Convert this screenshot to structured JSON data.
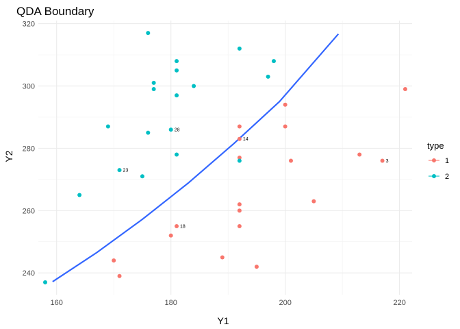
{
  "chart_data": {
    "type": "scatter",
    "title": "QDA Boundary",
    "xlabel": "Y1",
    "ylabel": "Y2",
    "xlim": [
      156.8,
      222.2
    ],
    "ylim": [
      233.0,
      321.0
    ],
    "x_ticks": [
      160,
      180,
      200,
      220
    ],
    "y_ticks": [
      240,
      260,
      280,
      300,
      320
    ],
    "grid": true,
    "legend": {
      "title": "type",
      "position": "right",
      "entries": [
        {
          "label": "1",
          "color": "#F8766D"
        },
        {
          "label": "2",
          "color": "#00BFC4"
        }
      ]
    },
    "series": [
      {
        "name": "1",
        "color": "#F8766D",
        "points": [
          {
            "x": 221,
            "y": 299
          },
          {
            "x": 200,
            "y": 294
          },
          {
            "x": 192,
            "y": 287
          },
          {
            "x": 200,
            "y": 287
          },
          {
            "x": 192,
            "y": 283,
            "label": "14"
          },
          {
            "x": 213,
            "y": 278
          },
          {
            "x": 192,
            "y": 277
          },
          {
            "x": 201,
            "y": 276
          },
          {
            "x": 217,
            "y": 276,
            "label": "3"
          },
          {
            "x": 205,
            "y": 263
          },
          {
            "x": 192,
            "y": 262
          },
          {
            "x": 192,
            "y": 260
          },
          {
            "x": 181,
            "y": 255,
            "label": "18"
          },
          {
            "x": 192,
            "y": 255
          },
          {
            "x": 180,
            "y": 252
          },
          {
            "x": 189,
            "y": 245
          },
          {
            "x": 170,
            "y": 244
          },
          {
            "x": 195,
            "y": 242
          },
          {
            "x": 171,
            "y": 239
          }
        ]
      },
      {
        "name": "2",
        "color": "#00BFC4",
        "points": [
          {
            "x": 176,
            "y": 317
          },
          {
            "x": 192,
            "y": 312
          },
          {
            "x": 181,
            "y": 308
          },
          {
            "x": 198,
            "y": 308
          },
          {
            "x": 181,
            "y": 305
          },
          {
            "x": 197,
            "y": 303
          },
          {
            "x": 177,
            "y": 301
          },
          {
            "x": 184,
            "y": 300
          },
          {
            "x": 177,
            "y": 299
          },
          {
            "x": 181,
            "y": 297
          },
          {
            "x": 169,
            "y": 287
          },
          {
            "x": 180,
            "y": 286,
            "label": "28"
          },
          {
            "x": 176,
            "y": 285
          },
          {
            "x": 181,
            "y": 278
          },
          {
            "x": 192,
            "y": 276
          },
          {
            "x": 171,
            "y": 273,
            "label": "23"
          },
          {
            "x": 175,
            "y": 271
          },
          {
            "x": 164,
            "y": 265
          },
          {
            "x": 158,
            "y": 237
          }
        ]
      }
    ],
    "boundary": {
      "color": "#3366FF",
      "x": [
        159.3,
        167.0,
        175.0,
        183.0,
        191.0,
        199.0,
        209.3
      ],
      "y": [
        237.2,
        246.5,
        257.2,
        268.8,
        281.5,
        295.0,
        316.7
      ]
    }
  }
}
